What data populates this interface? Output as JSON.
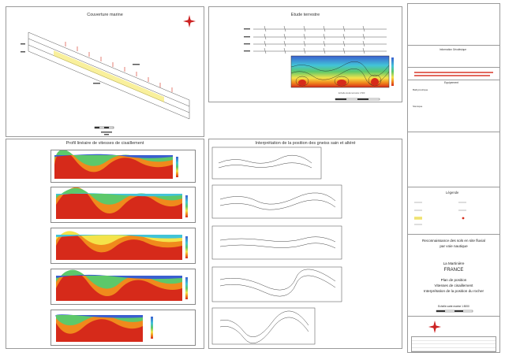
{
  "titles": {
    "marine": "Couverture marine",
    "terrestre": "Etude terrestre",
    "profil": "Profil linéaire de vitesses de cisaillement",
    "interp": "Interprétation de la position des gneiss sain et altéré"
  },
  "terrestre": {
    "scale": "Echelle étude terrestre 1:500"
  },
  "right_panel": {
    "info_title": "Information Géodésique",
    "equip_title": "Equipement",
    "bathy": "Bathymétrique",
    "sismo": "Sismique",
    "legende_title": "Légende",
    "main_title_1": "Reconnaissance des sols en site fluvial",
    "main_title_2": "par voie nautique",
    "site": "La Martinière",
    "country": "FRANCE",
    "plan_1": "Plan de position",
    "plan_2": "Vitesses de cisaillement",
    "plan_3": "Interprétation de la position du rocher",
    "scale": "Echelle carte marine 1:5000"
  },
  "colors": {
    "frame": "#9a9a9a",
    "deep_red": "#d62a1a",
    "orange": "#f08a1c",
    "yellow": "#f4e34a",
    "green": "#5dc86a",
    "cyan": "#42c4d8",
    "blue": "#3a5fd0",
    "compass": "#cc2222"
  }
}
